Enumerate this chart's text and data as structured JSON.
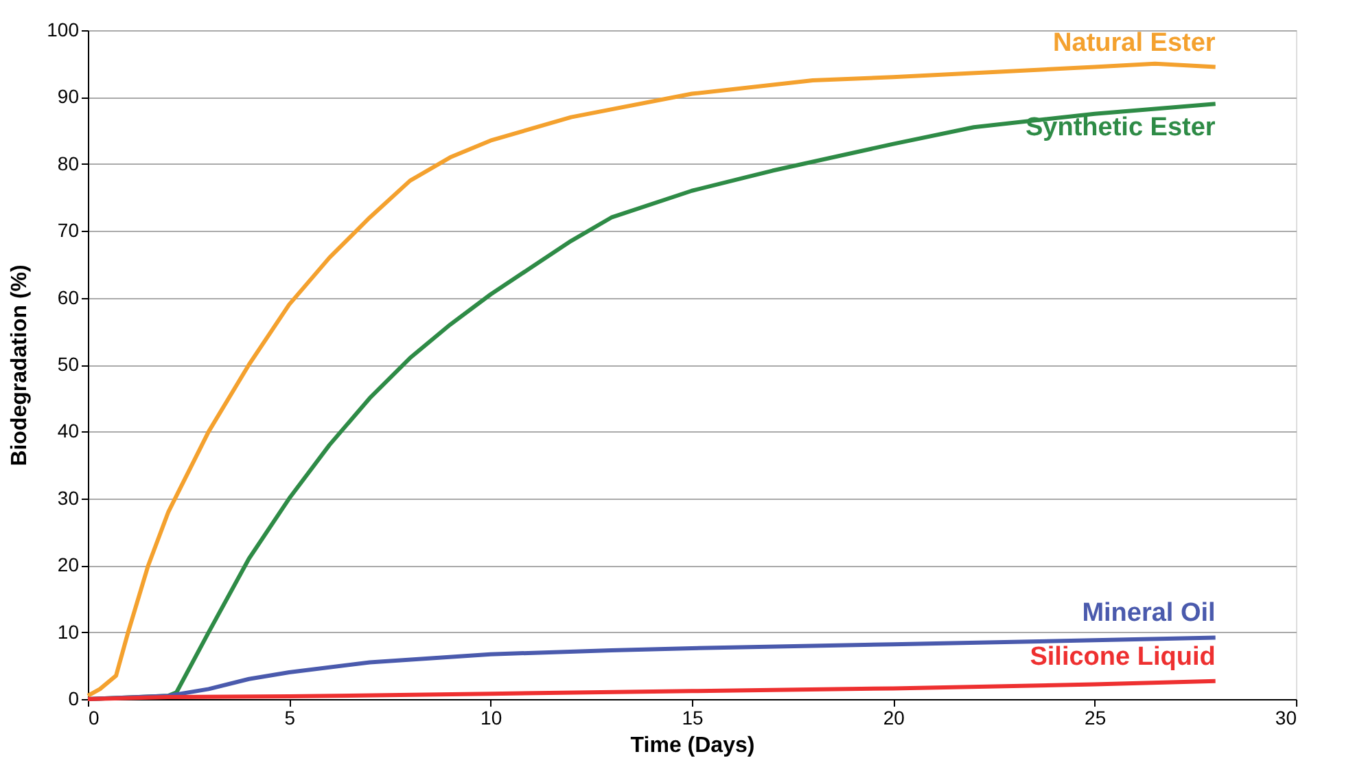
{
  "chart_data": {
    "type": "line",
    "xlabel": "Time (Days)",
    "ylabel": "Biodegradation  (%)",
    "xlim": [
      0,
      30
    ],
    "xticks": [
      0,
      5,
      10,
      15,
      20,
      25,
      30
    ],
    "ylim": [
      0,
      100
    ],
    "yticks": [
      0,
      10,
      20,
      30,
      40,
      50,
      60,
      70,
      80,
      90,
      100
    ],
    "grid": "y",
    "legend": false,
    "marker": "none",
    "line_style": "solid",
    "series": [
      {
        "name": "Natural Ester",
        "color": "#f4a12e",
        "x": [
          0,
          0.3,
          0.7,
          1,
          1.5,
          2,
          3,
          4,
          5,
          6,
          7,
          8,
          9,
          10,
          12,
          15,
          18,
          20,
          25,
          26.5,
          28
        ],
        "values": [
          0.5,
          1.5,
          3.5,
          10,
          20,
          28,
          40,
          50,
          59,
          66,
          72,
          77.5,
          81,
          83.5,
          87,
          90.5,
          92.5,
          93,
          94.5,
          95,
          94.5
        ]
      },
      {
        "name": "Synthetic Ester",
        "color": "#2e8b46",
        "x": [
          0,
          2,
          2.2,
          3,
          4,
          5,
          6,
          7,
          8,
          9,
          10,
          11,
          12,
          13,
          15,
          17,
          20,
          22,
          25,
          28
        ],
        "values": [
          0,
          0.5,
          1,
          10,
          21,
          30,
          38,
          45,
          51,
          56,
          60.5,
          64.5,
          68.5,
          72,
          76,
          79,
          83,
          85.5,
          87.5,
          89
        ]
      },
      {
        "name": "Mineral Oil",
        "color": "#4a5aad",
        "x": [
          0,
          2,
          3,
          4,
          5,
          7,
          10,
          13,
          15,
          20,
          25,
          28
        ],
        "values": [
          0,
          0.5,
          1.5,
          3,
          4,
          5.5,
          6.7,
          7.3,
          7.6,
          8.2,
          8.8,
          9.2
        ]
      },
      {
        "name": "Silicone Liquid",
        "color": "#ee3030",
        "x": [
          0,
          2,
          5,
          10,
          15,
          20,
          25,
          28
        ],
        "values": [
          0,
          0.3,
          0.4,
          0.8,
          1.2,
          1.6,
          2.2,
          2.7
        ]
      }
    ]
  }
}
